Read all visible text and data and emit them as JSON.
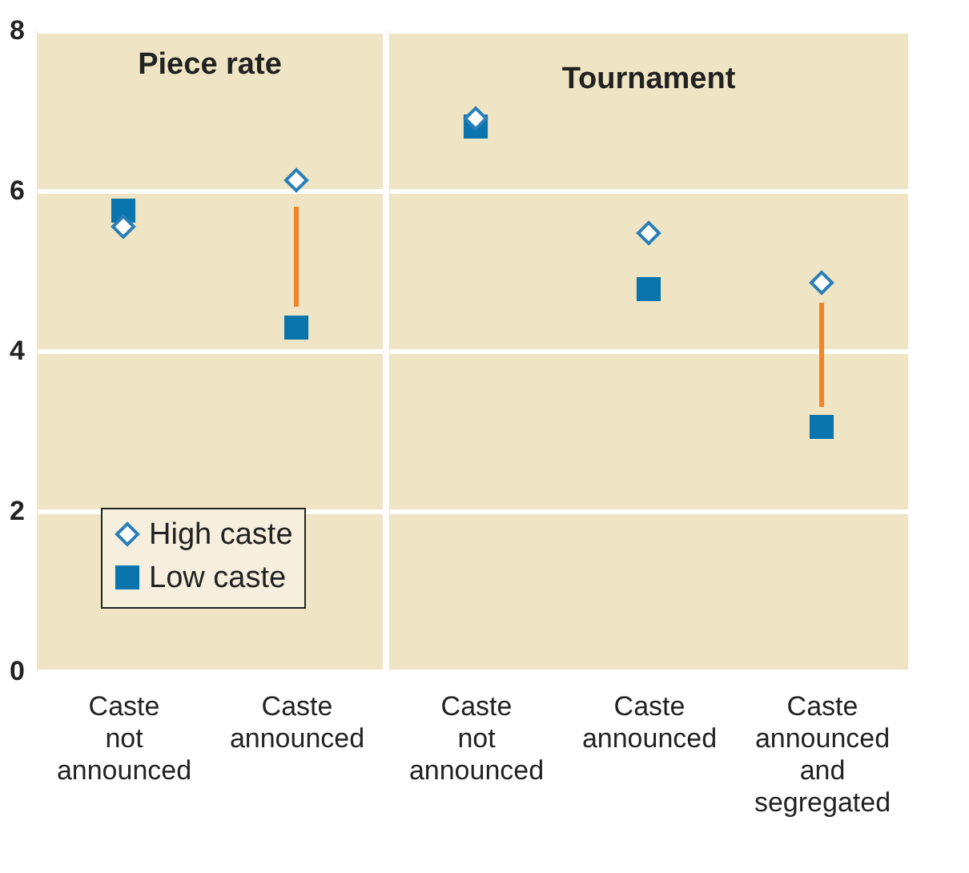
{
  "chart_data": [
    {
      "type": "scatter",
      "title": "Piece rate",
      "categories": [
        "Caste not announced",
        "Caste announced"
      ],
      "ylim": [
        0,
        8
      ],
      "yticks": [
        0,
        2,
        4,
        6,
        8
      ],
      "grid": "y",
      "legend": "bottom left",
      "series": [
        {
          "name": "High caste",
          "color": "#2a7fb8",
          "marker": "diamond",
          "values": [
            5.55,
            6.13
          ]
        },
        {
          "name": "Low caste",
          "color": "#0a74ad",
          "marker": "square",
          "values": [
            5.75,
            4.29
          ]
        },
        {
          "type": "line",
          "color": "#f0852a",
          "marker": "none",
          "x": [
            "Caste announced",
            "Caste announced"
          ],
          "values": [
            5.8,
            4.55
          ]
        }
      ]
    },
    {
      "type": "scatter",
      "title": "Tournament",
      "categories": [
        "Caste not announced",
        "Caste announced",
        "Caste announced and segregated"
      ],
      "ylim": [
        0,
        8
      ],
      "yticks": [
        0,
        2,
        4,
        6,
        8
      ],
      "grid": "y",
      "tick_labels": "x",
      "series": [
        {
          "color": "#2a7fb8",
          "marker": "diamond",
          "values": [
            6.9,
            5.47,
            4.85
          ]
        },
        {
          "color": "#0a74ad",
          "marker": "square",
          "values": [
            6.8,
            4.77,
            3.05
          ]
        },
        {
          "type": "line",
          "color": "#f0852a",
          "marker": "none",
          "x": [
            "Caste announced and segregated",
            "Caste announced and segregated"
          ],
          "values": [
            4.6,
            3.3
          ]
        }
      ]
    }
  ]
}
